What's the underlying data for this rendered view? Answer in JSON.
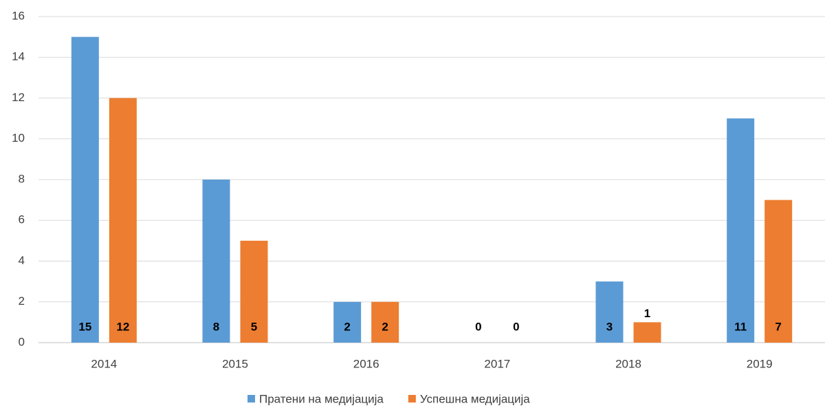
{
  "chart_data": {
    "type": "bar",
    "categories": [
      "2014",
      "2015",
      "2016",
      "2017",
      "2018",
      "2019"
    ],
    "series": [
      {
        "name": "Пратени на медијација",
        "color": "#5b9bd5",
        "values": [
          15,
          8,
          2,
          0,
          3,
          11
        ]
      },
      {
        "name": "Успешна медијација",
        "color": "#ed7d31",
        "values": [
          12,
          5,
          2,
          0,
          1,
          7
        ]
      }
    ],
    "ylim": [
      0,
      16
    ],
    "yticks": [
      0,
      2,
      4,
      6,
      8,
      10,
      12,
      14,
      16
    ],
    "grid": true,
    "legend": "bottom"
  }
}
